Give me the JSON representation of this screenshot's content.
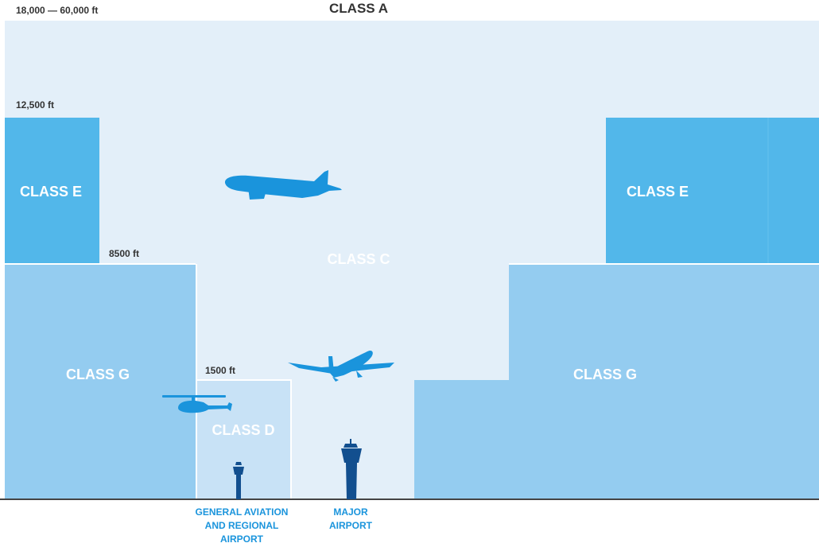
{
  "title": "CLASS A",
  "altitudes": {
    "class_a_range": "18,000 — 60,000 ft",
    "e_floor": "12,500 ft",
    "g_ceiling": "8500 ft",
    "d_ceiling": "1500 ft"
  },
  "zones": {
    "class_c": "CLASS C",
    "class_e_left": "CLASS E",
    "class_e_right": "CLASS E",
    "class_g_left": "CLASS G",
    "class_g_right": "CLASS G",
    "class_d": "CLASS D"
  },
  "airports": {
    "regional_line1": "GENERAL AVIATION",
    "regional_line2": "AND REGIONAL",
    "regional_line3": "AIRPORT",
    "major_line1": "MAJOR",
    "major_line2": "AIRPORT"
  },
  "colors": {
    "class_a": "#e3eff9",
    "class_e": "#52b7ea",
    "class_g": "#94ccf0",
    "class_d": "#c8e2f6",
    "aircraft": "#1a94dc",
    "tower": "#124f8f",
    "label_text": "#1a94dc",
    "ground_line": "#444444"
  },
  "icons": [
    "jet-airliner-icon",
    "jumbo-jet-icon",
    "helicopter-icon",
    "control-tower-icon"
  ]
}
